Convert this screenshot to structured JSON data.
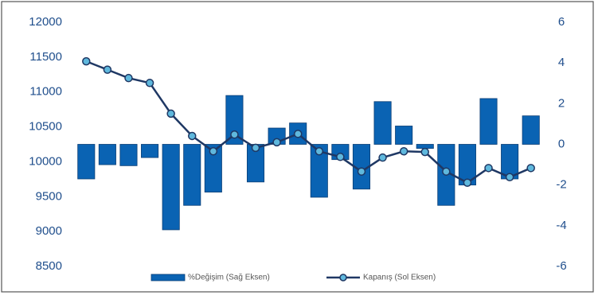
{
  "chart_data": {
    "type": "bar-line",
    "categories": [
      null,
      null,
      null,
      null,
      null,
      null,
      null,
      null,
      null,
      null,
      null,
      null,
      null,
      null,
      null,
      null,
      null,
      null,
      null,
      null,
      null,
      null
    ],
    "series": [
      {
        "name": "%Değişim (Sağ Eksen)",
        "type": "bar",
        "axis": "y2",
        "color": "#0a63b3",
        "values": [
          -1.7,
          -1.0,
          -1.05,
          -0.65,
          -4.2,
          -3.0,
          -2.35,
          2.4,
          -1.85,
          0.8,
          1.05,
          -2.6,
          -0.75,
          -2.2,
          2.1,
          0.9,
          -0.2,
          -3.0,
          -2.0,
          2.25,
          -1.7,
          1.4
        ]
      },
      {
        "name": "Kapanış (Sol Eksen)",
        "type": "line",
        "axis": "y",
        "color": "#1f3864",
        "values": [
          11440,
          11320,
          11200,
          11130,
          10690,
          10370,
          10150,
          10390,
          10200,
          10280,
          10400,
          10150,
          10070,
          9860,
          10060,
          10150,
          10140,
          9860,
          9700,
          9910,
          9780,
          9910
        ]
      }
    ],
    "ylim": [
      8500,
      12000
    ],
    "yticks": [
      8500,
      9000,
      9500,
      10000,
      10500,
      11000,
      11500,
      12000
    ],
    "y2lim": [
      -6,
      6
    ],
    "y2ticks": [
      -6,
      -4,
      -2,
      0,
      2,
      4,
      6
    ],
    "legend": "bottom"
  }
}
